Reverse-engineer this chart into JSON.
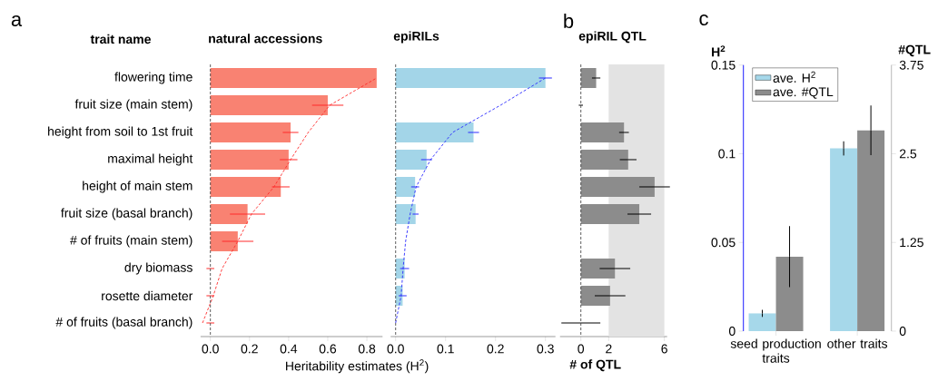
{
  "chart_data": [
    {
      "type": "bar",
      "orientation": "horizontal",
      "title": "natural accessions",
      "xlabel": "Heritability estimates (H$^{2}$)",
      "annotations": [
        "a",
        "trait name"
      ],
      "categories": [
        "flowering time",
        "fruit size (main stem)",
        "height from soil to 1st fruit",
        "maximal height",
        "height of main stem",
        "fruit size (basal branch)",
        "# of fruits (main stem)",
        "dry biomass",
        "rosette diameter",
        "# of fruits (basal branch)"
      ],
      "series": [
        {
          "color": "#f98272",
          "values": [
            0.85,
            0.6,
            0.41,
            0.4,
            0.36,
            0.19,
            0.14,
            0,
            0,
            0
          ],
          "errors": [
            null,
            0.08,
            0.04,
            0.045,
            0.045,
            0.09,
            0.08,
            0.02,
            0.02,
            0.02
          ]
        },
        {
          "type": "line",
          "color": "#ff2a2a",
          "line_style": "dashed",
          "values": [
            0.85,
            0.61,
            0.5,
            0.41,
            0.325,
            0.21,
            0.14,
            0.06,
            0.015,
            -0.04
          ]
        }
      ],
      "xlim": [
        -0.05,
        0.88
      ],
      "xticks": [
        {
          "value": 0,
          "label": "0.0"
        },
        0.2,
        0.4,
        0.6,
        0.8
      ],
      "ref_lines": [
        {
          "axis": "x",
          "value": 0,
          "color": "#333333",
          "line_style": "dashed"
        }
      ]
    },
    {
      "type": "bar",
      "orientation": "horizontal",
      "title": "epiRILs",
      "categories": [
        null,
        null,
        null,
        null,
        null,
        null,
        null,
        null,
        null,
        null
      ],
      "series": [
        {
          "color": "#a3d5e8",
          "values": [
            0.3,
            0,
            0.156,
            0.062,
            0.039,
            0.04,
            0,
            0.018,
            0.014,
            0
          ],
          "errors": [
            0.013,
            null,
            0.011,
            0.011,
            0.008,
            0.006,
            null,
            0.009,
            0.008,
            null
          ]
        },
        {
          "type": "line",
          "color": "#2a2aff",
          "line_style": "dashed",
          "values": [
            0.3,
            0.21,
            0.114,
            0.07,
            0.041,
            0.029,
            0.02,
            0.015,
            0.011,
            0
          ]
        }
      ],
      "xlim": [
        -0.01,
        0.32
      ],
      "xticks": [
        {
          "value": 0,
          "label": "0.0"
        },
        0.1,
        0.2,
        0.3
      ],
      "tick_labels": "x",
      "ref_lines": [
        {
          "axis": "x",
          "value": 0,
          "color": "#333333",
          "line_style": "dashed"
        }
      ]
    },
    {
      "type": "bar",
      "orientation": "horizontal",
      "title": "epiRIL QTL",
      "xlabel": "# of QTL",
      "annotations": [
        "b"
      ],
      "categories": [
        null,
        null,
        null,
        null,
        null,
        null,
        null,
        null,
        null,
        null
      ],
      "series": [
        {
          "color": "#8c8c8c",
          "values": [
            1.1,
            0,
            3.1,
            3.4,
            5.3,
            4.2,
            0,
            2.45,
            2.1,
            0
          ],
          "errors": [
            0.3,
            0.15,
            0.35,
            0.6,
            1.1,
            0.85,
            null,
            1.1,
            1.1,
            1.4
          ]
        }
      ],
      "xlim": [
        -1.5,
        6.2
      ],
      "xticks": [
        0,
        2,
        6
      ],
      "tick_labels": "x",
      "bands": [
        {
          "axis": "x",
          "from": 2,
          "to": 6,
          "color": "#e3e3e3"
        }
      ],
      "ref_lines": [
        {
          "axis": "x",
          "value": 0,
          "color": "#333333",
          "line_style": "dashed"
        }
      ]
    },
    {
      "type": "bar",
      "ylabel": "H$^{2}$",
      "y2label": "#QTL",
      "legend": "top left",
      "annotations": [
        "c"
      ],
      "categories": [
        "seed production traits",
        "other traits"
      ],
      "series": [
        {
          "name": "ave. H$^{2}$",
          "color": "#a6d8ea",
          "values": [
            0.01,
            0.103
          ],
          "errors": [
            0.002,
            0.004
          ]
        },
        {
          "name": "ave. #QTL",
          "color": "#8c8c8c",
          "axis": "y2",
          "values": [
            1.05,
            2.83
          ],
          "errors": [
            0.43,
            0.35
          ]
        }
      ],
      "ylim": [
        0,
        0.15
      ],
      "yticks": [
        0,
        0.05,
        0.1,
        0.15
      ],
      "y2lim": [
        0,
        3.75
      ],
      "y2ticks": [
        0,
        1.25,
        2.5,
        3.75
      ]
    }
  ]
}
